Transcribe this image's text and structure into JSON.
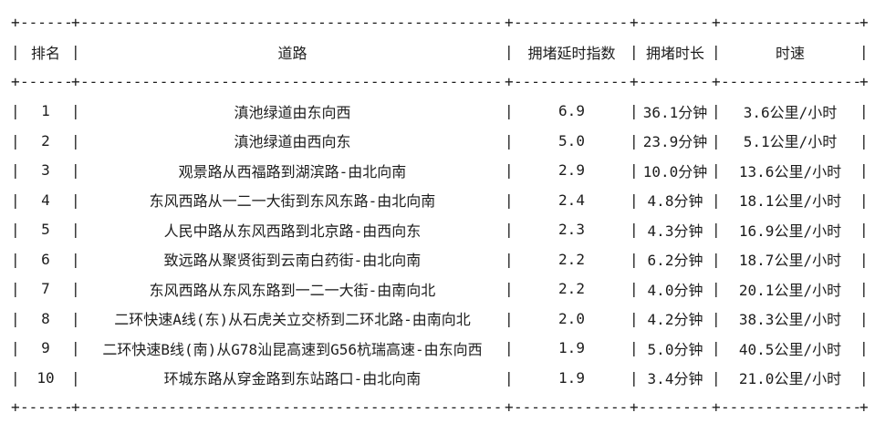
{
  "page": {
    "background": "#ffffff",
    "text_color": "#1d1d1d",
    "border_color": "#1d1d1d"
  },
  "chart_data": {
    "type": "table",
    "headers": [
      "排名",
      "道路",
      "拥堵延时指数",
      "拥堵时长",
      "时速"
    ],
    "column_keys": [
      "rank",
      "road",
      "delay_index",
      "duration",
      "speed"
    ],
    "rows": [
      {
        "rank": "1",
        "road": "滇池绿道由东向西",
        "delay_index": "6.9",
        "duration": "36.1分钟",
        "speed": "3.6公里/小时"
      },
      {
        "rank": "2",
        "road": "滇池绿道由西向东",
        "delay_index": "5.0",
        "duration": "23.9分钟",
        "speed": "5.1公里/小时"
      },
      {
        "rank": "3",
        "road": "观景路从西福路到湖滨路-由北向南",
        "delay_index": "2.9",
        "duration": "10.0分钟",
        "speed": "13.6公里/小时"
      },
      {
        "rank": "4",
        "road": "东风西路从一二一大街到东风东路-由北向南",
        "delay_index": "2.4",
        "duration": "4.8分钟",
        "speed": "18.1公里/小时"
      },
      {
        "rank": "5",
        "road": "人民中路从东风西路到北京路-由西向东",
        "delay_index": "2.3",
        "duration": "4.3分钟",
        "speed": "16.9公里/小时"
      },
      {
        "rank": "6",
        "road": "致远路从聚贤街到云南白药街-由北向南",
        "delay_index": "2.2",
        "duration": "6.2分钟",
        "speed": "18.7公里/小时"
      },
      {
        "rank": "7",
        "road": "东风西路从东风东路到一二一大街-由南向北",
        "delay_index": "2.2",
        "duration": "4.0分钟",
        "speed": "20.1公里/小时"
      },
      {
        "rank": "8",
        "road": "二环快速A线(东)从石虎关立交桥到二环北路-由南向北",
        "delay_index": "2.0",
        "duration": "4.2分钟",
        "speed": "38.3公里/小时"
      },
      {
        "rank": "9",
        "road": "二环快速B线(南)从G78汕昆高速到G56杭瑞高速-由东向西",
        "delay_index": "1.9",
        "duration": "5.0分钟",
        "speed": "40.5公里/小时"
      },
      {
        "rank": "10",
        "road": "环城东路从穿金路到东站路口-由北向南",
        "delay_index": "1.9",
        "duration": "3.4分钟",
        "speed": "21.0公里/小时"
      }
    ]
  }
}
